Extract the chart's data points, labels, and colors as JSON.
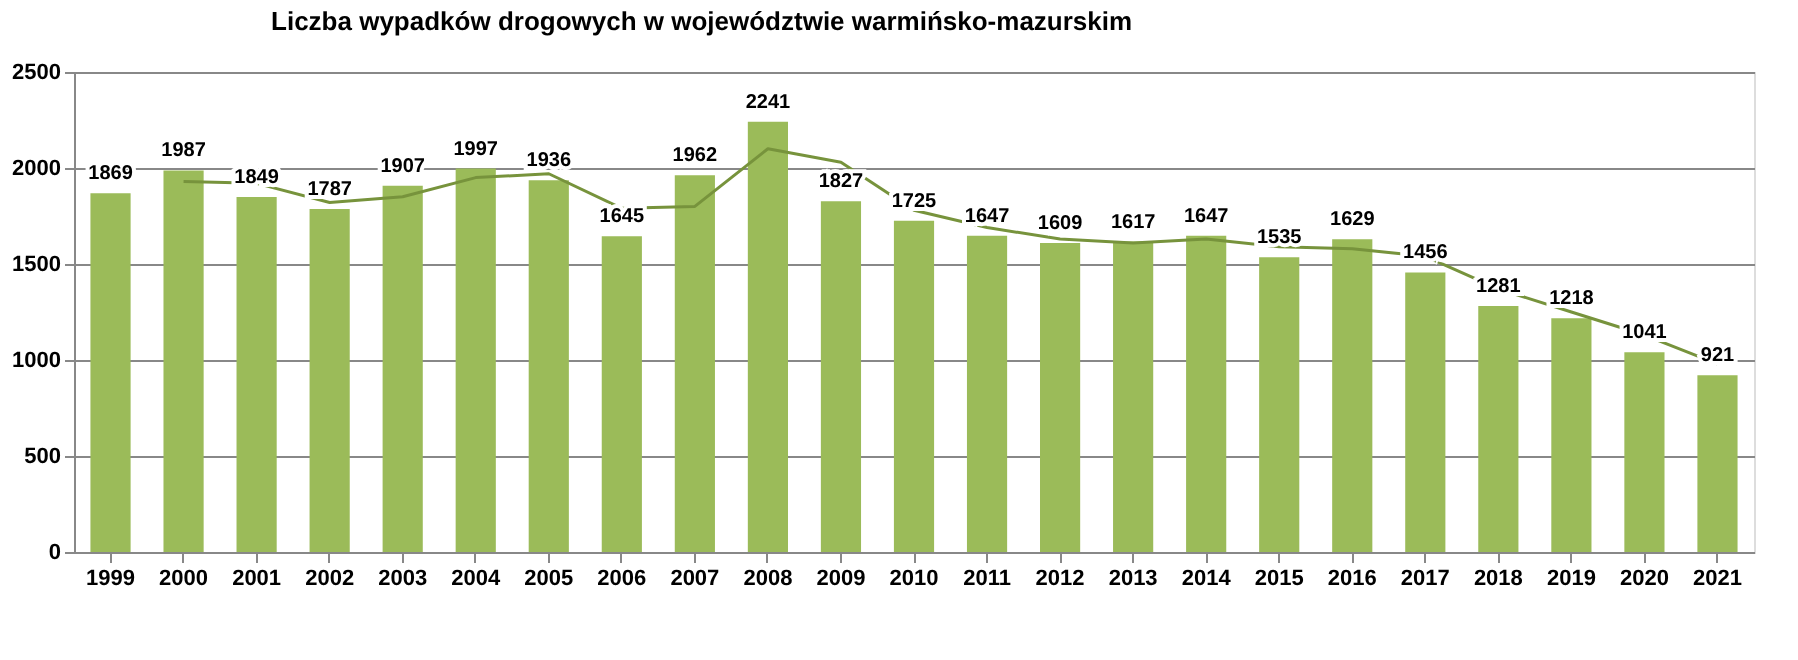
{
  "chart_data": {
    "type": "bar",
    "title": "Liczba wypadków drogowych w województwie warmińsko-mazurskim",
    "categories": [
      "1999",
      "2000",
      "2001",
      "2002",
      "2003",
      "2004",
      "2005",
      "2006",
      "2007",
      "2008",
      "2009",
      "2010",
      "2011",
      "2012",
      "2013",
      "2014",
      "2015",
      "2016",
      "2017",
      "2018",
      "2019",
      "2020",
      "2021"
    ],
    "series": [
      {
        "color": "#9bbb59",
        "values": [
          1869,
          1987,
          1849,
          1787,
          1907,
          1997,
          1936,
          1645,
          1962,
          2241,
          1827,
          1725,
          1647,
          1609,
          1617,
          1647,
          1535,
          1629,
          1456,
          1281,
          1218,
          1041,
          921
        ],
        "value_labels": [
          "1869",
          "1987",
          "1849",
          "1787",
          "1907",
          "1997",
          "1936",
          "1645",
          "1962",
          "2241",
          "1827",
          "1725",
          "1647",
          "1609",
          "1617",
          "1647",
          "1535",
          "1629",
          "1456",
          "1281",
          "1218",
          "1041",
          "921"
        ]
      },
      {
        "type": "line",
        "color": "#77933c",
        "values": [
          null,
          1930,
          1920,
          1820,
          1850,
          1950,
          1970,
          1790,
          1800,
          2100,
          2030,
          1780,
          1690,
          1630,
          1610,
          1630,
          1590,
          1580,
          1540,
          1370,
          1250,
          1130,
          980
        ]
      }
    ],
    "ylim": [
      0,
      2500
    ],
    "yticks": [
      0,
      500,
      1000,
      1500,
      2000,
      2500
    ],
    "grid": "y",
    "marker": "none",
    "line_style": "solid"
  }
}
